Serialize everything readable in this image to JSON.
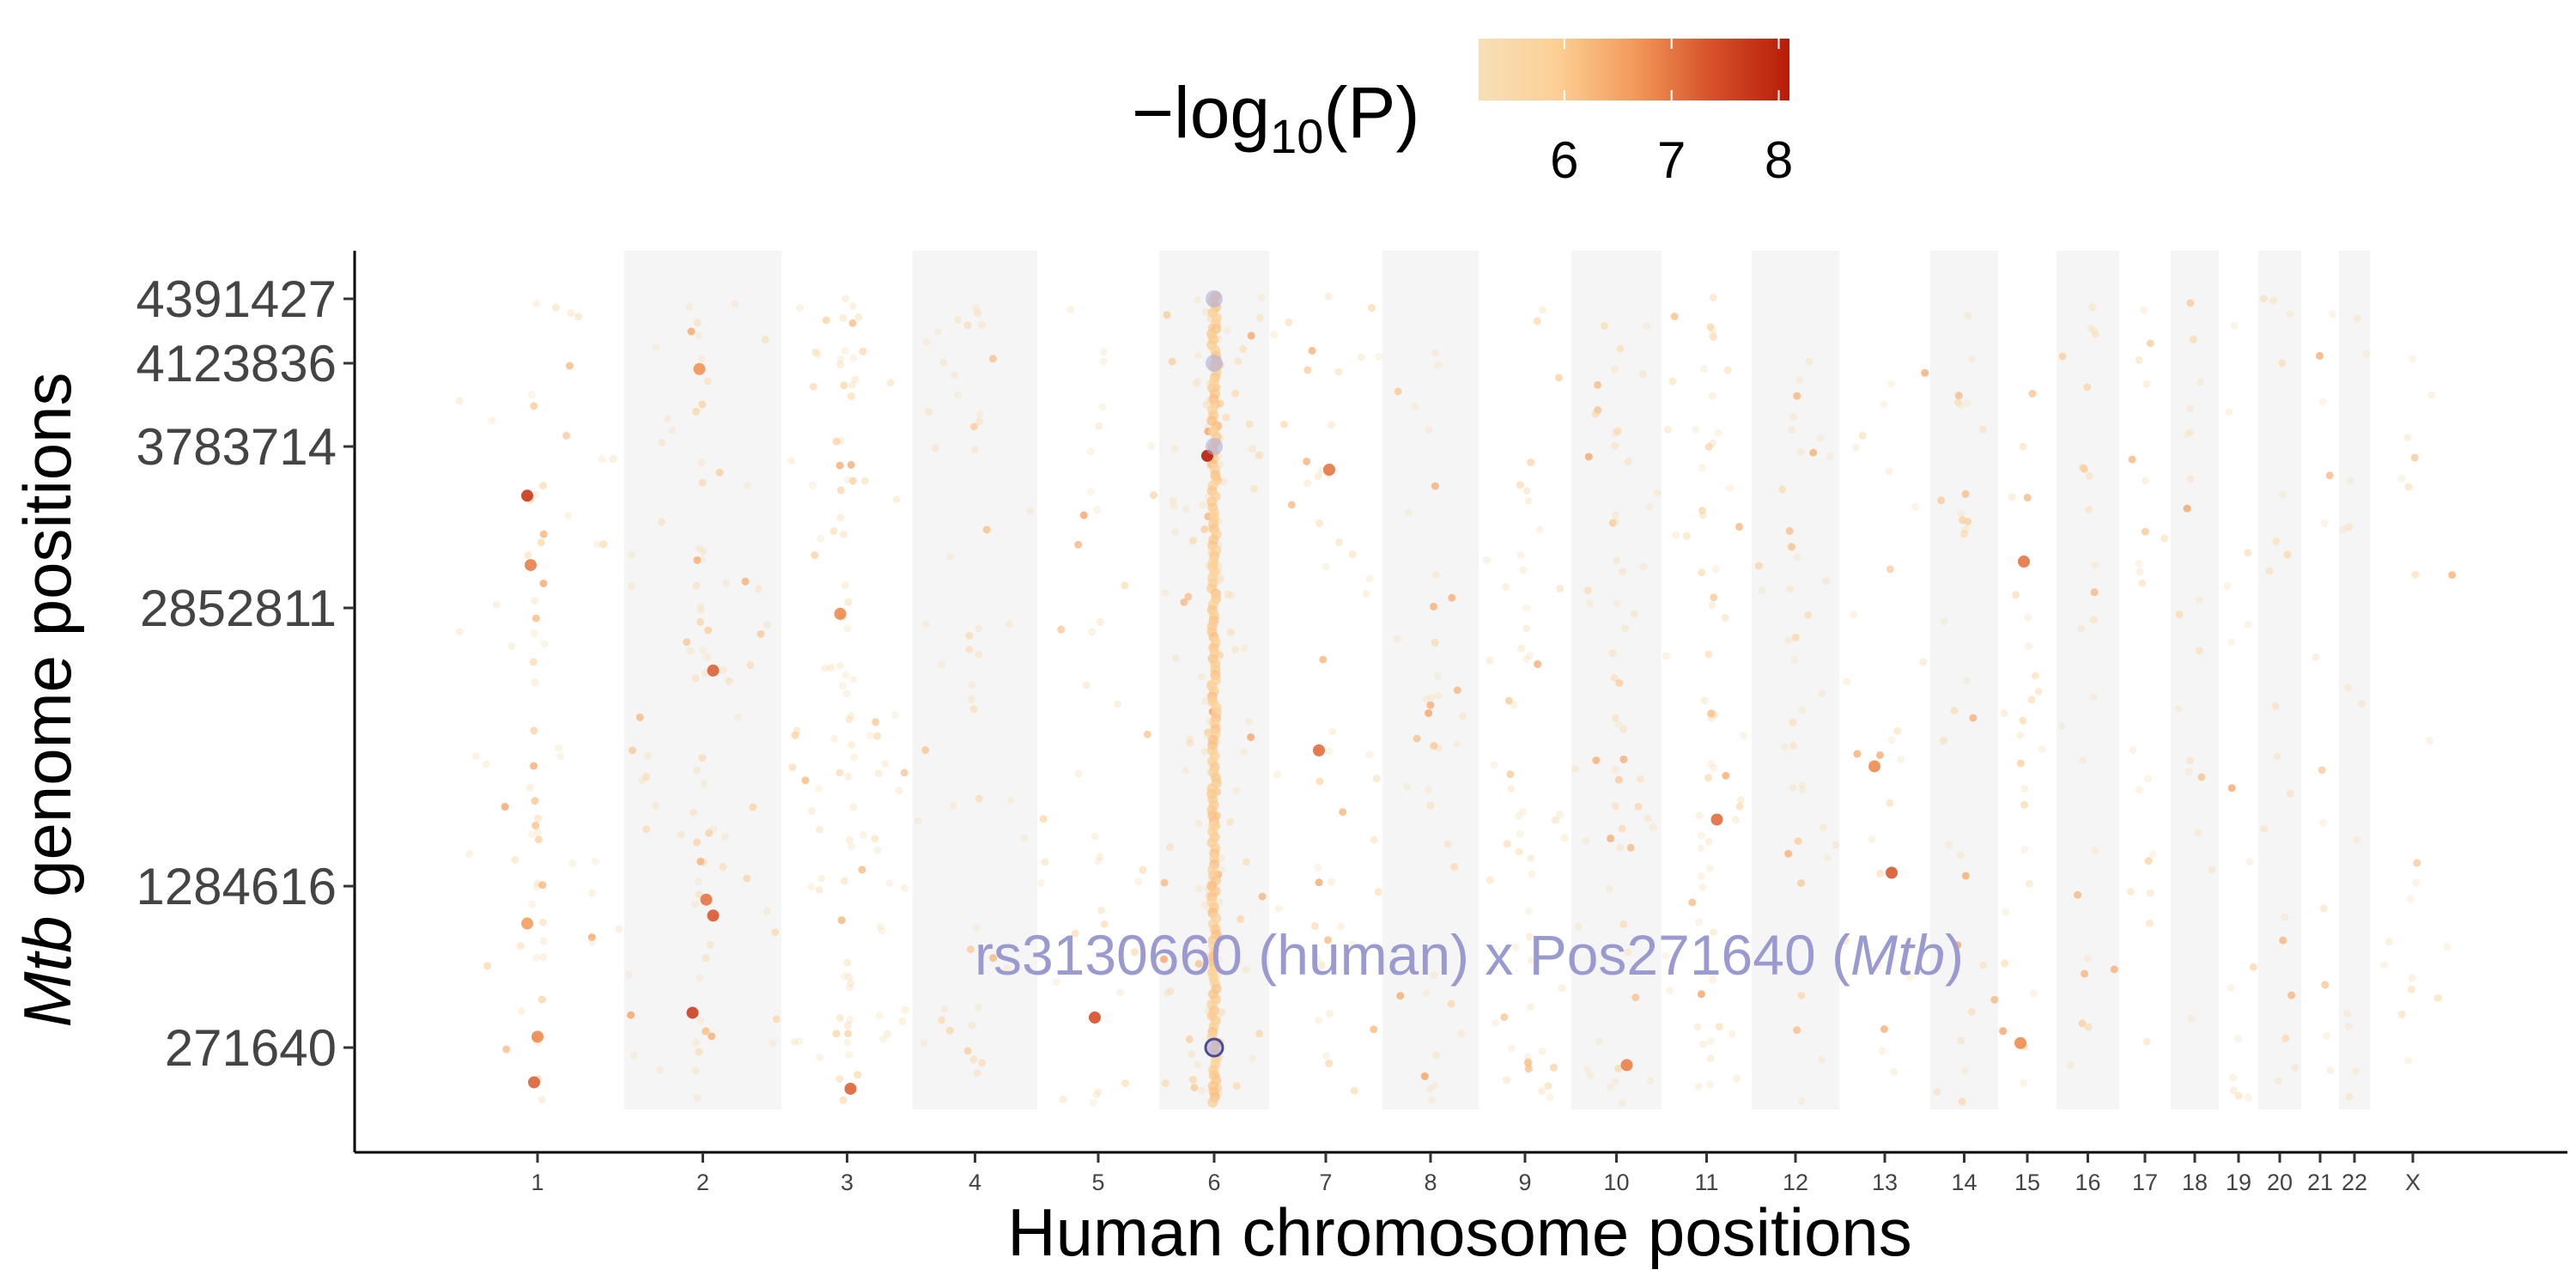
{
  "chart_data": {
    "type": "scatter",
    "xlabel": "Human chromosome positions",
    "ylabel_italic": "Mtb",
    "ylabel_rest": " genome positions",
    "legend": {
      "title_prefix": "−log",
      "title_sub": "10",
      "title_suffix": "(P)",
      "ticks": [
        "6",
        "7",
        "8"
      ],
      "range": [
        5.2,
        8.1
      ],
      "colors": [
        "#f6dfb8",
        "#fcd095",
        "#f39a5a",
        "#d6502a",
        "#b71c08"
      ],
      "placement": "top"
    },
    "chromosomes": [
      "1",
      "2",
      "3",
      "4",
      "5",
      "6",
      "7",
      "8",
      "9",
      "10",
      "11",
      "12",
      "13",
      "14",
      "15",
      "16",
      "17",
      "18",
      "19",
      "20",
      "21",
      "22",
      "X"
    ],
    "chromosome_bands": [
      1,
      3,
      5,
      7,
      9,
      11,
      13,
      15,
      17,
      19,
      21
    ],
    "y_ticks": [
      "4391427",
      "4123836",
      "3783714",
      "2852811",
      "1284616",
      "271640"
    ],
    "y_range": [
      0,
      4411532
    ],
    "annotation": {
      "prefix": "rs3130660 (human) x Pos271640 (",
      "italic": "Mtb",
      "suffix": ")"
    },
    "highlight": [
      {
        "chromosome": "6",
        "y": 271640,
        "p": 7.5
      },
      {
        "chromosome": "6",
        "y": 3783714,
        "p": 6.0
      },
      {
        "chromosome": "6",
        "y": 4123836,
        "p": 6.0
      },
      {
        "chromosome": "6",
        "y": 4391427,
        "p": 6.0
      }
    ],
    "significant_points": [
      {
        "chromosome": "1",
        "y": 110000,
        "p": 7.2
      },
      {
        "chromosome": "1",
        "y": 340000,
        "p": 6.8
      },
      {
        "chromosome": "1",
        "y": 1050000,
        "p": 6.6
      },
      {
        "chromosome": "1",
        "y": 3100000,
        "p": 6.9
      },
      {
        "chromosome": "1",
        "y": 3500000,
        "p": 7.7
      },
      {
        "chromosome": "2",
        "y": 490000,
        "p": 7.6
      },
      {
        "chromosome": "2",
        "y": 1200000,
        "p": 7.0
      },
      {
        "chromosome": "2",
        "y": 1100000,
        "p": 7.3
      },
      {
        "chromosome": "2",
        "y": 2500000,
        "p": 7.2
      },
      {
        "chromosome": "2",
        "y": 4100000,
        "p": 6.7
      },
      {
        "chromosome": "3",
        "y": 80000,
        "p": 7.2
      },
      {
        "chromosome": "3",
        "y": 2820000,
        "p": 6.8
      },
      {
        "chromosome": "5",
        "y": 460000,
        "p": 7.4
      },
      {
        "chromosome": "6",
        "y": 3730000,
        "p": 8.1
      },
      {
        "chromosome": "7",
        "y": 3650000,
        "p": 7.0
      },
      {
        "chromosome": "7",
        "y": 2050000,
        "p": 7.1
      },
      {
        "chromosome": "10",
        "y": 190000,
        "p": 6.9
      },
      {
        "chromosome": "11",
        "y": 1660000,
        "p": 7.1
      },
      {
        "chromosome": "13",
        "y": 1360000,
        "p": 7.3
      },
      {
        "chromosome": "13",
        "y": 1960000,
        "p": 6.8
      },
      {
        "chromosome": "15",
        "y": 3120000,
        "p": 7.0
      },
      {
        "chromosome": "15",
        "y": 300000,
        "p": 6.8
      }
    ]
  }
}
